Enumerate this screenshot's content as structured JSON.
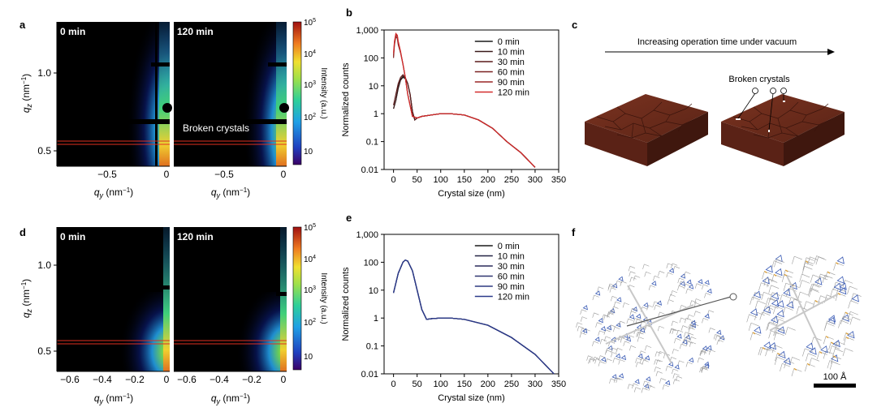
{
  "panels": {
    "a": {
      "label": "a",
      "map_left_title": "0 min",
      "map_right_title": "120 min",
      "annotation": "Broken crystals",
      "ylabel": "q",
      "ylabel_sub": "z",
      "unit": " (nm",
      "unit_sup": "−1",
      "unit_end": ")",
      "xlabel": "q",
      "xlabel_sub": "y",
      "xticks_left": [
        "−0.5",
        "0"
      ],
      "xticks_right": [
        "−0.5",
        "0"
      ],
      "yticks": [
        "1.0",
        "0.5"
      ]
    },
    "d": {
      "label": "d",
      "map_left_title": "0 min",
      "map_right_title": "120 min",
      "xticks_left": [
        "−0.6",
        "−0.4",
        "−0.2",
        "0"
      ],
      "xticks_right": [
        "−0.6",
        "−0.4",
        "−0.2",
        "0"
      ],
      "yticks": [
        "1.0",
        "0.5"
      ]
    },
    "colorbar": {
      "label": "Intensity (a.u.)",
      "ticks": [
        "10",
        "10",
        "10",
        "10",
        "10"
      ],
      "exps": [
        "5",
        "4",
        "3",
        "2",
        ""
      ]
    },
    "c": {
      "label": "c",
      "arrow_text": "Increasing operation time under vacuum",
      "annotation": "Broken crystals"
    },
    "f": {
      "label": "f",
      "scale_bar": "100 Å"
    },
    "b": {
      "label": "b"
    },
    "e": {
      "label": "e"
    }
  },
  "colors": {
    "black": "#000000",
    "red": "#c0392b",
    "navy": "#2b3a8a",
    "brown": "#6b2a1c"
  },
  "chart_data": [
    {
      "type": "line",
      "panel": "b",
      "xlabel": "Crystal size (nm)",
      "ylabel": "Normalized counts",
      "xlim": [
        -20,
        350
      ],
      "ylim": [
        0.01,
        1000
      ],
      "yscale": "log",
      "xticks": [
        0,
        50,
        100,
        150,
        200,
        250,
        300,
        350
      ],
      "yticks": [
        "1,000",
        "100",
        "10",
        "1",
        "0.1",
        "0.01"
      ],
      "legend_position": "top-right",
      "series": [
        {
          "name": "0 min",
          "color": "#1a1a1a",
          "x": [
            0,
            5,
            10,
            15,
            20,
            25,
            30,
            35,
            40,
            45,
            50,
            60,
            80,
            100,
            120,
            150,
            180,
            210,
            240,
            270,
            300
          ],
          "y": [
            1.5,
            3,
            8,
            16,
            20,
            18,
            12,
            5,
            1.2,
            0.6,
            0.7,
            0.8,
            0.9,
            1.0,
            1.0,
            0.9,
            0.6,
            0.3,
            0.1,
            0.04,
            0.012
          ]
        },
        {
          "name": "10 min",
          "color": "#3a1a1a",
          "x": [
            0,
            5,
            10,
            15,
            20,
            25,
            30,
            35,
            40,
            45,
            50,
            60,
            80,
            100,
            120,
            150,
            180,
            210,
            240,
            270,
            300
          ],
          "y": [
            1.5,
            3,
            9,
            17,
            22,
            19,
            12,
            5,
            1.2,
            0.6,
            0.7,
            0.8,
            0.9,
            1.0,
            1.0,
            0.9,
            0.6,
            0.3,
            0.1,
            0.04,
            0.012
          ]
        },
        {
          "name": "30 min",
          "color": "#5a1a1a",
          "x": [
            0,
            5,
            10,
            15,
            20,
            25,
            30,
            35,
            40,
            45,
            50,
            60,
            80,
            100,
            120,
            150,
            180,
            210,
            240,
            270,
            300
          ],
          "y": [
            2,
            5,
            12,
            20,
            25,
            20,
            12,
            5,
            1.2,
            0.6,
            0.7,
            0.8,
            0.9,
            1.0,
            1.0,
            0.9,
            0.6,
            0.3,
            0.1,
            0.04,
            0.012
          ]
        },
        {
          "name": "60 min",
          "color": "#7a2020",
          "x": [
            0,
            2,
            5,
            8,
            10,
            15,
            20,
            25,
            30,
            40,
            50,
            60,
            80,
            100,
            120,
            150,
            180,
            210,
            240,
            270,
            300
          ],
          "y": [
            100,
            300,
            600,
            500,
            300,
            150,
            60,
            20,
            5,
            0.8,
            0.7,
            0.8,
            0.9,
            1.0,
            1.0,
            0.9,
            0.6,
            0.3,
            0.1,
            0.04,
            0.012
          ]
        },
        {
          "name": "90 min",
          "color": "#9a2525",
          "x": [
            0,
            2,
            5,
            8,
            10,
            15,
            20,
            25,
            30,
            40,
            50,
            60,
            80,
            100,
            120,
            150,
            180,
            210,
            240,
            270,
            300
          ],
          "y": [
            120,
            350,
            700,
            600,
            350,
            160,
            60,
            20,
            5,
            0.8,
            0.7,
            0.8,
            0.9,
            1.0,
            1.0,
            0.9,
            0.6,
            0.3,
            0.1,
            0.04,
            0.012
          ]
        },
        {
          "name": "120 min",
          "color": "#d22b2b",
          "x": [
            0,
            2,
            5,
            8,
            10,
            15,
            20,
            25,
            30,
            40,
            50,
            60,
            80,
            100,
            120,
            150,
            180,
            210,
            240,
            270,
            300
          ],
          "y": [
            150,
            400,
            750,
            650,
            400,
            170,
            60,
            20,
            5,
            0.8,
            0.7,
            0.8,
            0.9,
            1.0,
            1.0,
            0.9,
            0.6,
            0.3,
            0.1,
            0.04,
            0.012
          ]
        }
      ]
    },
    {
      "type": "line",
      "panel": "e",
      "xlabel": "Crystal size (nm)",
      "ylabel": "Normalized counts",
      "xlim": [
        -20,
        350
      ],
      "ylim": [
        0.01,
        1000
      ],
      "yscale": "log",
      "xticks": [
        0,
        50,
        100,
        150,
        200,
        250,
        300,
        350
      ],
      "yticks": [
        "1,000",
        "100",
        "10",
        "1",
        "0.1",
        "0.01"
      ],
      "legend_position": "top-right",
      "series": [
        {
          "name": "0 min",
          "color": "#1a1a1a",
          "x": [
            0,
            10,
            20,
            25,
            30,
            40,
            50,
            60,
            70,
            80,
            100,
            120,
            150,
            200,
            250,
            300,
            340
          ],
          "y": [
            8,
            40,
            100,
            120,
            110,
            50,
            10,
            2,
            0.9,
            0.95,
            1.0,
            1.0,
            0.9,
            0.55,
            0.2,
            0.05,
            0.01
          ]
        },
        {
          "name": "10 min",
          "color": "#222244",
          "x": [
            0,
            10,
            20,
            25,
            30,
            40,
            50,
            60,
            70,
            80,
            100,
            120,
            150,
            200,
            250,
            300,
            340
          ],
          "y": [
            8,
            40,
            100,
            120,
            110,
            50,
            10,
            2,
            0.9,
            0.95,
            1.0,
            1.0,
            0.9,
            0.55,
            0.2,
            0.05,
            0.01
          ]
        },
        {
          "name": "30 min",
          "color": "#2a2a5a",
          "x": [
            0,
            10,
            20,
            25,
            30,
            40,
            50,
            60,
            70,
            80,
            100,
            120,
            150,
            200,
            250,
            300,
            340
          ],
          "y": [
            8,
            40,
            100,
            120,
            110,
            50,
            10,
            2,
            0.9,
            0.95,
            1.0,
            1.0,
            0.9,
            0.55,
            0.2,
            0.05,
            0.01
          ]
        },
        {
          "name": "60 min",
          "color": "#2f3470",
          "x": [
            0,
            10,
            20,
            25,
            30,
            40,
            50,
            60,
            70,
            80,
            100,
            120,
            150,
            200,
            250,
            300,
            340
          ],
          "y": [
            8,
            40,
            100,
            120,
            110,
            50,
            10,
            2,
            0.9,
            0.95,
            1.0,
            1.0,
            0.9,
            0.55,
            0.2,
            0.05,
            0.01
          ]
        },
        {
          "name": "90 min",
          "color": "#2f3880",
          "x": [
            0,
            10,
            20,
            25,
            30,
            40,
            50,
            60,
            70,
            80,
            100,
            120,
            150,
            200,
            250,
            300,
            340
          ],
          "y": [
            8,
            40,
            100,
            120,
            110,
            50,
            10,
            2,
            0.9,
            0.95,
            1.0,
            1.0,
            0.9,
            0.55,
            0.2,
            0.05,
            0.01
          ]
        },
        {
          "name": "120 min",
          "color": "#2b3a8a",
          "x": [
            0,
            10,
            20,
            25,
            30,
            40,
            50,
            60,
            70,
            80,
            100,
            120,
            150,
            200,
            250,
            300,
            340
          ],
          "y": [
            8,
            40,
            100,
            120,
            110,
            50,
            10,
            2,
            0.9,
            0.95,
            1.0,
            1.0,
            0.9,
            0.55,
            0.2,
            0.05,
            0.01
          ]
        }
      ]
    }
  ]
}
